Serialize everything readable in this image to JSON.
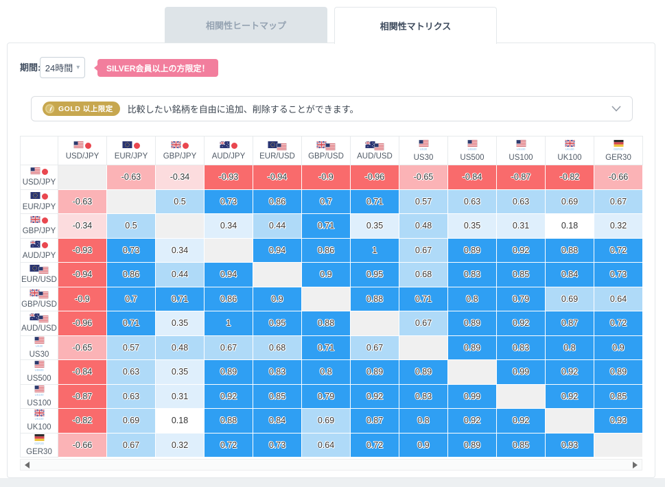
{
  "tabs": [
    {
      "label": "相関性ヒートマップ",
      "active": false
    },
    {
      "label": "相関性マトリクス",
      "active": true
    }
  ],
  "controls": {
    "period_label": "期間:",
    "period_value": "24時間",
    "silver_badge": "SILVER会員以上の方限定！"
  },
  "gold_banner": {
    "badge": "GOLD 以上限定",
    "text": "比較したい銘柄を自由に追加、削除することができます。"
  },
  "colors": {
    "accent_pink": "#F27E9D",
    "gold": "#C7A74F",
    "strong_blue": "#2F9FF3",
    "light_blue": "#AFDAF8",
    "pale_blue": "#DFEFFC",
    "neutral": "#FFFFFF",
    "pale_red": "#FCDCDE",
    "light_red": "#FBB3B6",
    "strong_red": "#F96B6C",
    "diagonal_gray": "#F0F0F0"
  },
  "chart_data": {
    "type": "heatmap",
    "title": "相関性マトリクス",
    "period": "24時間",
    "categories": [
      "USD/JPY",
      "EUR/JPY",
      "GBP/JPY",
      "AUD/JPY",
      "EUR/USD",
      "GBP/USD",
      "AUD/USD",
      "US30",
      "US500",
      "US100",
      "UK100",
      "GER30"
    ],
    "instruments": [
      {
        "label": "USD/JPY",
        "flags": [
          "us",
          "jp"
        ]
      },
      {
        "label": "EUR/JPY",
        "flags": [
          "eu",
          "jp"
        ]
      },
      {
        "label": "GBP/JPY",
        "flags": [
          "uk",
          "jp"
        ]
      },
      {
        "label": "AUD/JPY",
        "flags": [
          "au",
          "jp"
        ]
      },
      {
        "label": "EUR/USD",
        "flags": [
          "eu",
          "us"
        ]
      },
      {
        "label": "GBP/USD",
        "flags": [
          "uk",
          "us"
        ]
      },
      {
        "label": "AUD/USD",
        "flags": [
          "au",
          "us"
        ]
      },
      {
        "label": "US30",
        "flags": [
          "us"
        ],
        "sub": "US30"
      },
      {
        "label": "US500",
        "flags": [
          "us"
        ],
        "sub": "US500"
      },
      {
        "label": "US100",
        "flags": [
          "us"
        ],
        "sub": "US100"
      },
      {
        "label": "UK100",
        "flags": [
          "uk"
        ],
        "sub": "UK100"
      },
      {
        "label": "GER30",
        "flags": [
          "de"
        ],
        "sub": "GER30"
      }
    ],
    "matrix": [
      [
        null,
        -0.63,
        -0.34,
        -0.93,
        -0.94,
        -0.9,
        -0.96,
        -0.65,
        -0.84,
        -0.87,
        -0.82,
        -0.66
      ],
      [
        -0.63,
        null,
        0.5,
        0.73,
        0.86,
        0.7,
        0.71,
        0.57,
        0.63,
        0.63,
        0.69,
        0.67
      ],
      [
        -0.34,
        0.5,
        null,
        0.34,
        0.44,
        0.71,
        0.35,
        0.48,
        0.35,
        0.31,
        0.18,
        0.32
      ],
      [
        -0.93,
        0.73,
        0.34,
        null,
        0.94,
        0.86,
        1,
        0.67,
        0.89,
        0.92,
        0.88,
        0.72
      ],
      [
        -0.94,
        0.86,
        0.44,
        0.94,
        null,
        0.9,
        0.95,
        0.68,
        0.83,
        0.85,
        0.84,
        0.73
      ],
      [
        -0.9,
        0.7,
        0.71,
        0.86,
        0.9,
        null,
        0.88,
        0.71,
        0.8,
        0.79,
        0.69,
        0.64
      ],
      [
        -0.96,
        0.71,
        0.35,
        1,
        0.95,
        0.88,
        null,
        0.67,
        0.89,
        0.92,
        0.87,
        0.72
      ],
      [
        -0.65,
        0.57,
        0.48,
        0.67,
        0.68,
        0.71,
        0.67,
        null,
        0.89,
        0.83,
        0.8,
        0.9
      ],
      [
        -0.84,
        0.63,
        0.35,
        0.89,
        0.83,
        0.8,
        0.89,
        0.89,
        null,
        0.99,
        0.92,
        0.89
      ],
      [
        -0.87,
        0.63,
        0.31,
        0.92,
        0.85,
        0.79,
        0.92,
        0.83,
        0.99,
        null,
        0.92,
        0.85
      ],
      [
        -0.82,
        0.69,
        0.18,
        0.88,
        0.84,
        0.69,
        0.87,
        0.8,
        0.92,
        0.92,
        null,
        0.93
      ],
      [
        -0.66,
        0.67,
        0.32,
        0.72,
        0.73,
        0.64,
        0.72,
        0.9,
        0.89,
        0.85,
        0.93,
        null
      ]
    ],
    "color_bands": [
      {
        "min": 0.7,
        "color": "strong_blue"
      },
      {
        "min": 0.4,
        "color": "light_blue"
      },
      {
        "min": 0.2,
        "color": "pale_blue"
      },
      {
        "min": -0.2,
        "color": "neutral"
      },
      {
        "min": -0.4,
        "color": "pale_red"
      },
      {
        "min": -0.7,
        "color": "light_red"
      },
      {
        "min": -1.0,
        "color": "strong_red"
      }
    ],
    "legend_position": "none",
    "grid": true
  }
}
